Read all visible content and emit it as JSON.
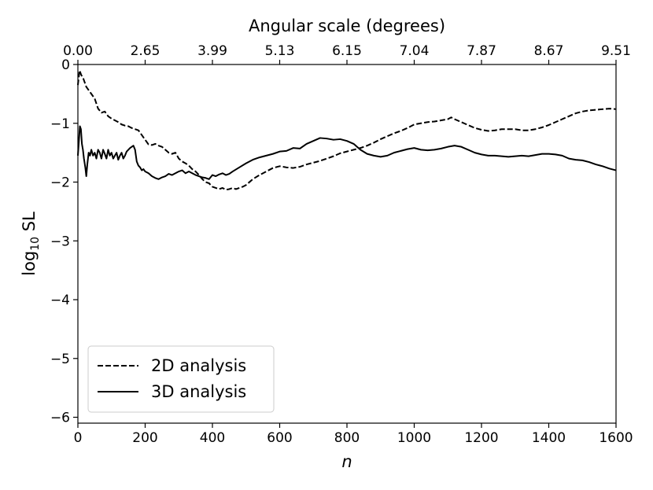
{
  "chart_data": {
    "type": "line",
    "xlabel": "n",
    "ylabel_main": "log",
    "ylabel_sub": "10",
    "ylabel_tail": " SL",
    "top_xlabel": "Angular scale (degrees)",
    "xlim": [
      0,
      1600
    ],
    "ylim": [
      -6.1,
      0
    ],
    "x_ticks": [
      0,
      200,
      400,
      600,
      800,
      1000,
      1200,
      1400,
      1600
    ],
    "x_tick_labels": [
      "0",
      "200",
      "400",
      "600",
      "800",
      "1000",
      "1200",
      "1400",
      "1600"
    ],
    "y_ticks": [
      0,
      -1,
      -2,
      -3,
      -4,
      -5,
      -6
    ],
    "y_tick_labels": [
      "0",
      "−1",
      "−2",
      "−3",
      "−4",
      "−5",
      "−6"
    ],
    "top_ticks": [
      0,
      200,
      400,
      600,
      800,
      1000,
      1200,
      1400,
      1600
    ],
    "top_tick_labels": [
      "0.00",
      "2.65",
      "3.99",
      "5.13",
      "6.15",
      "7.04",
      "7.87",
      "8.67",
      "9.51"
    ],
    "legend_position": "lower-left",
    "series": [
      {
        "name": "2D analysis",
        "style": "dashed",
        "color": "#000000",
        "x": [
          0,
          5,
          10,
          15,
          20,
          25,
          30,
          40,
          50,
          60,
          70,
          80,
          90,
          100,
          110,
          120,
          130,
          140,
          150,
          160,
          170,
          180,
          190,
          200,
          210,
          220,
          230,
          240,
          250,
          260,
          270,
          280,
          290,
          300,
          310,
          320,
          330,
          340,
          350,
          360,
          370,
          380,
          390,
          400,
          410,
          420,
          430,
          440,
          450,
          460,
          470,
          480,
          490,
          500,
          520,
          540,
          560,
          580,
          600,
          620,
          640,
          660,
          680,
          700,
          720,
          740,
          760,
          780,
          800,
          820,
          840,
          860,
          880,
          900,
          920,
          940,
          960,
          980,
          1000,
          1020,
          1040,
          1060,
          1080,
          1100,
          1110,
          1120,
          1140,
          1160,
          1180,
          1200,
          1220,
          1240,
          1260,
          1280,
          1300,
          1320,
          1340,
          1360,
          1380,
          1400,
          1420,
          1440,
          1460,
          1480,
          1500,
          1520,
          1540,
          1560,
          1580,
          1600
        ],
        "y": [
          -0.35,
          -0.1,
          -0.18,
          -0.22,
          -0.3,
          -0.38,
          -0.42,
          -0.5,
          -0.58,
          -0.75,
          -0.82,
          -0.8,
          -0.88,
          -0.92,
          -0.95,
          -0.98,
          -1.02,
          -1.04,
          -1.05,
          -1.08,
          -1.1,
          -1.12,
          -1.2,
          -1.28,
          -1.36,
          -1.37,
          -1.35,
          -1.38,
          -1.4,
          -1.45,
          -1.5,
          -1.52,
          -1.5,
          -1.6,
          -1.65,
          -1.68,
          -1.72,
          -1.78,
          -1.82,
          -1.88,
          -1.95,
          -2.0,
          -2.02,
          -2.08,
          -2.1,
          -2.12,
          -2.1,
          -2.13,
          -2.12,
          -2.1,
          -2.12,
          -2.1,
          -2.08,
          -2.05,
          -1.95,
          -1.88,
          -1.82,
          -1.76,
          -1.73,
          -1.75,
          -1.76,
          -1.74,
          -1.7,
          -1.67,
          -1.64,
          -1.6,
          -1.56,
          -1.51,
          -1.48,
          -1.45,
          -1.42,
          -1.38,
          -1.33,
          -1.27,
          -1.22,
          -1.17,
          -1.13,
          -1.08,
          -1.02,
          -1.0,
          -0.98,
          -0.97,
          -0.95,
          -0.93,
          -0.9,
          -0.93,
          -0.98,
          -1.03,
          -1.08,
          -1.11,
          -1.13,
          -1.12,
          -1.1,
          -1.1,
          -1.1,
          -1.12,
          -1.12,
          -1.1,
          -1.07,
          -1.03,
          -0.98,
          -0.93,
          -0.88,
          -0.83,
          -0.8,
          -0.78,
          -0.77,
          -0.76,
          -0.75,
          -0.76
        ]
      },
      {
        "name": "3D analysis",
        "style": "solid",
        "color": "#000000",
        "x": [
          0,
          3,
          6,
          9,
          12,
          15,
          18,
          22,
          25,
          28,
          32,
          36,
          40,
          45,
          50,
          55,
          60,
          65,
          70,
          75,
          80,
          85,
          90,
          95,
          100,
          105,
          110,
          115,
          120,
          125,
          130,
          135,
          140,
          145,
          150,
          155,
          160,
          165,
          170,
          175,
          180,
          185,
          190,
          195,
          200,
          210,
          220,
          230,
          240,
          250,
          260,
          270,
          280,
          290,
          300,
          310,
          320,
          330,
          340,
          350,
          360,
          370,
          380,
          390,
          400,
          410,
          420,
          430,
          440,
          450,
          460,
          480,
          500,
          520,
          540,
          560,
          580,
          600,
          620,
          640,
          660,
          680,
          700,
          720,
          740,
          760,
          780,
          800,
          820,
          840,
          860,
          880,
          900,
          920,
          940,
          960,
          980,
          1000,
          1020,
          1040,
          1060,
          1080,
          1100,
          1120,
          1140,
          1160,
          1180,
          1200,
          1220,
          1240,
          1260,
          1280,
          1300,
          1320,
          1340,
          1360,
          1380,
          1400,
          1420,
          1440,
          1460,
          1480,
          1500,
          1520,
          1540,
          1560,
          1580,
          1600
        ],
        "y": [
          -1.55,
          -1.3,
          -1.05,
          -1.1,
          -1.35,
          -1.45,
          -1.6,
          -1.75,
          -1.9,
          -1.7,
          -1.5,
          -1.55,
          -1.45,
          -1.55,
          -1.5,
          -1.6,
          -1.45,
          -1.5,
          -1.6,
          -1.45,
          -1.52,
          -1.6,
          -1.45,
          -1.55,
          -1.5,
          -1.6,
          -1.55,
          -1.5,
          -1.62,
          -1.55,
          -1.5,
          -1.6,
          -1.55,
          -1.48,
          -1.45,
          -1.42,
          -1.4,
          -1.38,
          -1.45,
          -1.65,
          -1.72,
          -1.75,
          -1.8,
          -1.78,
          -1.82,
          -1.85,
          -1.9,
          -1.93,
          -1.95,
          -1.92,
          -1.9,
          -1.86,
          -1.88,
          -1.85,
          -1.82,
          -1.8,
          -1.85,
          -1.82,
          -1.85,
          -1.88,
          -1.9,
          -1.92,
          -1.93,
          -1.95,
          -1.88,
          -1.9,
          -1.87,
          -1.85,
          -1.88,
          -1.86,
          -1.82,
          -1.75,
          -1.68,
          -1.62,
          -1.58,
          -1.55,
          -1.52,
          -1.48,
          -1.47,
          -1.42,
          -1.43,
          -1.35,
          -1.3,
          -1.25,
          -1.26,
          -1.28,
          -1.27,
          -1.3,
          -1.35,
          -1.45,
          -1.52,
          -1.55,
          -1.57,
          -1.55,
          -1.5,
          -1.47,
          -1.44,
          -1.42,
          -1.45,
          -1.46,
          -1.45,
          -1.43,
          -1.4,
          -1.38,
          -1.4,
          -1.45,
          -1.5,
          -1.53,
          -1.55,
          -1.55,
          -1.56,
          -1.57,
          -1.56,
          -1.55,
          -1.56,
          -1.54,
          -1.52,
          -1.52,
          -1.53,
          -1.55,
          -1.6,
          -1.62,
          -1.63,
          -1.66,
          -1.7,
          -1.73,
          -1.77,
          -1.8
        ]
      }
    ]
  }
}
